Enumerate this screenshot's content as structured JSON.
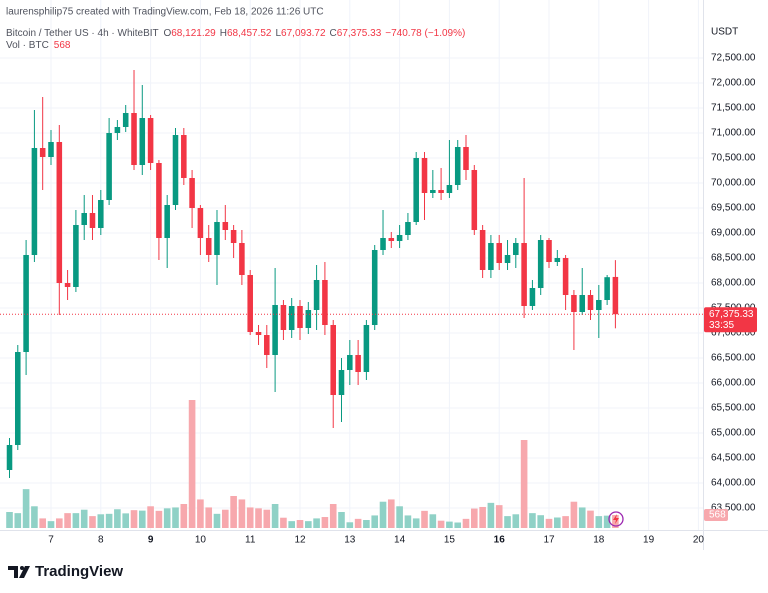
{
  "credit": "laurensphilip75 created with TradingView.com, Feb 18, 2026 11:26 UTC",
  "brand": "TradingView",
  "chart_data": {
    "type": "candlestick",
    "title": "Bitcoin / Tether US · 4h · WhiteBIT",
    "ohlc_legend": [
      {
        "key": "O",
        "value": 68121.29,
        "label": "68,121.29"
      },
      {
        "key": "H",
        "value": 68457.52,
        "label": "68,457.52"
      },
      {
        "key": "L",
        "value": 67093.72,
        "label": "67,093.72"
      },
      {
        "key": "C",
        "value": 67375.33,
        "label": "67,375.33"
      }
    ],
    "change": {
      "value": -740.78,
      "label": "−740.78 (−1.09%)"
    },
    "volume_title": "Vol · BTC",
    "axis_currency": "USDT",
    "last_price": {
      "value": 67375.33,
      "label": "67,375.33"
    },
    "countdown": "33:35",
    "up_color": "#089981",
    "down_color": "#f23645",
    "volume_up_color": "#8fd1c6",
    "volume_down_color": "#f7a8ad",
    "grid": true,
    "xlim": [
      5.976,
      20.092
    ],
    "ylim": [
      63060,
      73260
    ],
    "xticks": [
      7,
      8,
      9,
      10,
      11,
      12,
      13,
      14,
      15,
      16,
      17,
      18,
      19,
      20
    ],
    "xticks_bold": [
      9,
      16
    ],
    "yticks": [
      {
        "value": 63500,
        "label": "63,500.00"
      },
      {
        "value": 64000,
        "label": "64,000.00"
      },
      {
        "value": 64500,
        "label": "64,500.00"
      },
      {
        "value": 65000,
        "label": "65,000.00"
      },
      {
        "value": 65500,
        "label": "65,500.00"
      },
      {
        "value": 66000,
        "label": "66,000.00"
      },
      {
        "value": 66500,
        "label": "66,500.00"
      },
      {
        "value": 67000,
        "label": "67,000.00"
      },
      {
        "value": 67500,
        "label": "67,500.00"
      },
      {
        "value": 68000,
        "label": "68,000.00"
      },
      {
        "value": 68500,
        "label": "68,500.00"
      },
      {
        "value": 69000,
        "label": "69,000.00"
      },
      {
        "value": 69500,
        "label": "69,500.00"
      },
      {
        "value": 70000,
        "label": "70,000.00"
      },
      {
        "value": 70500,
        "label": "70,500.00"
      },
      {
        "value": 71000,
        "label": "71,000.00"
      },
      {
        "value": 71500,
        "label": "71,500.00"
      },
      {
        "value": 72000,
        "label": "72,000.00"
      },
      {
        "value": 72500,
        "label": "72,500.00"
      }
    ],
    "x": [
      6.167,
      6.333,
      6.5,
      6.667,
      6.833,
      7,
      7.167,
      7.333,
      7.5,
      7.667,
      7.833,
      8,
      8.167,
      8.333,
      8.5,
      8.667,
      8.833,
      9,
      9.167,
      9.333,
      9.5,
      9.667,
      9.833,
      10,
      10.167,
      10.333,
      10.5,
      10.667,
      10.833,
      11,
      11.167,
      11.333,
      11.5,
      11.667,
      11.833,
      12,
      12.167,
      12.333,
      12.5,
      12.667,
      12.833,
      13,
      13.167,
      13.333,
      13.5,
      13.667,
      13.833,
      14,
      14.167,
      14.333,
      14.5,
      14.667,
      14.833,
      15,
      15.167,
      15.333,
      15.5,
      15.667,
      15.833,
      16,
      16.167,
      16.333,
      16.5,
      16.667,
      16.833,
      17,
      17.167,
      17.333,
      17.5,
      17.667,
      17.833,
      18,
      18.167,
      18.333
    ],
    "open": [
      64260,
      64760,
      66620,
      68560,
      70700,
      70520,
      70820,
      68000,
      67920,
      69160,
      69400,
      69100,
      69660,
      71000,
      71120,
      71400,
      70360,
      71300,
      70400,
      68900,
      69560,
      70960,
      70100,
      69500,
      68900,
      68560,
      69220,
      69060,
      68800,
      68160,
      67020,
      66960,
      66560,
      67560,
      67060,
      67540,
      67100,
      67460,
      68060,
      67160,
      65760,
      66260,
      66560,
      66220,
      67160,
      68660,
      68900,
      68840,
      68960,
      69220,
      70500,
      69800,
      69860,
      69800,
      69960,
      70720,
      70260,
      69060,
      68260,
      68800,
      68400,
      68560,
      68800,
      67540,
      67900,
      68860,
      68420,
      68500,
      67760,
      67420,
      67760,
      67460,
      67660,
      68121.29
    ],
    "high": [
      64900,
      66760,
      68860,
      71460,
      71720,
      71060,
      71160,
      68260,
      69460,
      69760,
      69760,
      69860,
      71300,
      71260,
      71560,
      72260,
      71960,
      71360,
      70460,
      69760,
      71100,
      71100,
      70260,
      69560,
      69160,
      69460,
      69560,
      69160,
      69060,
      68260,
      67160,
      67160,
      68300,
      67660,
      67700,
      67660,
      67620,
      68360,
      68420,
      67260,
      66500,
      66860,
      66860,
      67260,
      68760,
      69460,
      69020,
      69160,
      69400,
      70620,
      70620,
      70260,
      70300,
      70860,
      70860,
      70960,
      70360,
      69160,
      68960,
      68960,
      68860,
      68900,
      70100,
      68060,
      68960,
      68900,
      68660,
      68560,
      67860,
      68300,
      67860,
      67960,
      68160,
      68457.52
    ],
    "low": [
      64100,
      64660,
      66160,
      68420,
      69860,
      70360,
      67360,
      67660,
      67820,
      68860,
      68860,
      68960,
      69560,
      70860,
      71020,
      70260,
      70160,
      70260,
      68460,
      68300,
      69460,
      69960,
      69100,
      68560,
      68420,
      67960,
      68860,
      68500,
      67960,
      66960,
      66760,
      66300,
      65820,
      66860,
      66900,
      66860,
      66980,
      67060,
      66960,
      65100,
      65220,
      65960,
      65960,
      66060,
      67060,
      68560,
      68700,
      68700,
      68860,
      69160,
      69260,
      69700,
      69660,
      69700,
      69860,
      70060,
      68960,
      68100,
      68100,
      68260,
      68260,
      68300,
      67300,
      67460,
      67760,
      68300,
      68340,
      67460,
      66660,
      67360,
      67260,
      66900,
      67560,
      67093.72
    ],
    "close": [
      64760,
      66620,
      68560,
      70700,
      70520,
      70820,
      68000,
      67920,
      69160,
      69400,
      69100,
      69660,
      71000,
      71120,
      71400,
      70360,
      71300,
      70400,
      68900,
      69560,
      70960,
      70100,
      69500,
      68900,
      68560,
      69220,
      69060,
      68800,
      68160,
      67020,
      66960,
      66560,
      67560,
      67060,
      67540,
      67100,
      67460,
      68060,
      67160,
      65760,
      66260,
      66560,
      66220,
      67160,
      68660,
      68900,
      68840,
      68960,
      69220,
      70500,
      69800,
      69860,
      69800,
      69960,
      70720,
      70260,
      69060,
      68260,
      68800,
      68400,
      68560,
      68800,
      67540,
      67900,
      68860,
      68420,
      68500,
      67760,
      67420,
      67760,
      67460,
      67660,
      68116.11,
      67375.33
    ],
    "volume": [
      700,
      650,
      1700,
      950,
      420,
      300,
      420,
      650,
      650,
      800,
      520,
      600,
      620,
      820,
      640,
      780,
      760,
      950,
      750,
      860,
      900,
      1050,
      5600,
      1250,
      900,
      620,
      800,
      1400,
      1250,
      900,
      860,
      800,
      1050,
      450,
      300,
      350,
      300,
      420,
      480,
      1050,
      700,
      250,
      400,
      350,
      550,
      1150,
      1250,
      950,
      550,
      420,
      750,
      600,
      320,
      280,
      240,
      400,
      850,
      920,
      1100,
      1000,
      520,
      600,
      3850,
      650,
      560,
      400,
      460,
      520,
      1150,
      900,
      760,
      520,
      540,
      568
    ]
  }
}
